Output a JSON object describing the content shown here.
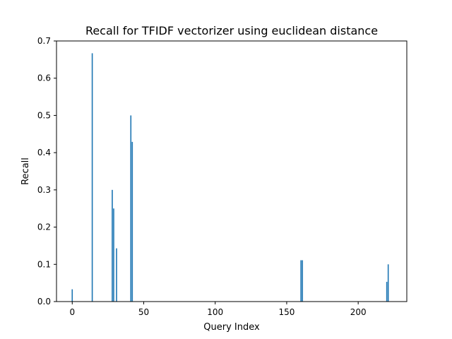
{
  "chart_data": {
    "type": "bar",
    "title": "Recall for TFIDF vectorizer using euclidean distance",
    "xlabel": "Query Index",
    "ylabel": "Recall",
    "xlim": [
      -11,
      234
    ],
    "ylim": [
      0,
      0.7
    ],
    "xticks": [
      0,
      50,
      100,
      150,
      200
    ],
    "xtick_labels": [
      "0",
      "50",
      "100",
      "150",
      "200"
    ],
    "yticks": [
      0.0,
      0.1,
      0.2,
      0.3,
      0.4,
      0.5,
      0.6,
      0.7
    ],
    "ytick_labels": [
      "0.0",
      "0.1",
      "0.2",
      "0.3",
      "0.4",
      "0.5",
      "0.6",
      "0.7"
    ],
    "grid": false,
    "bar_color": "#1f77b4",
    "series": [
      {
        "x": [
          0,
          14,
          28,
          29,
          31,
          41,
          42,
          160,
          161,
          220,
          221
        ],
        "values": [
          0.033,
          0.667,
          0.3,
          0.25,
          0.143,
          0.5,
          0.429,
          0.111,
          0.111,
          0.053,
          0.1
        ]
      }
    ]
  }
}
